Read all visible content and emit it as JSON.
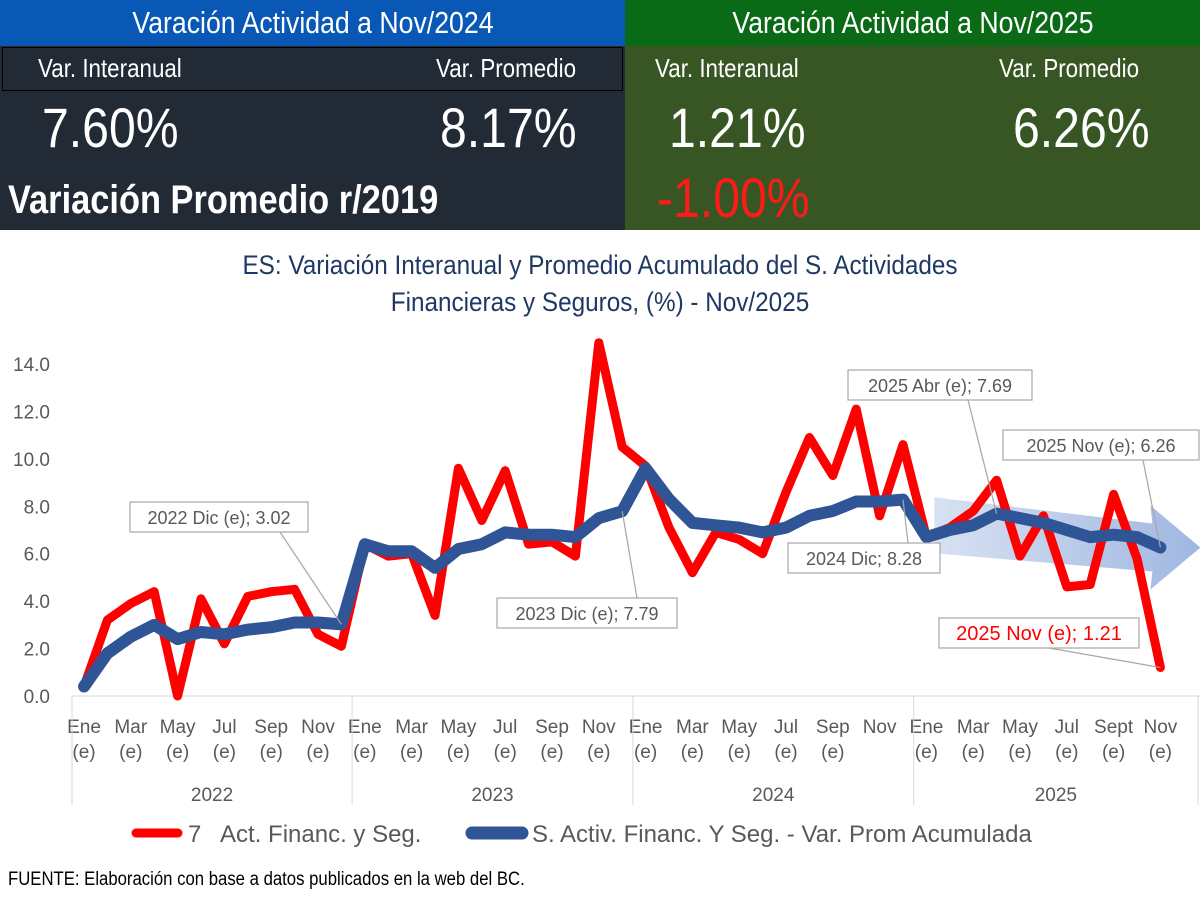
{
  "panel_2024": {
    "header": "Varación Actividad a Nov/2024",
    "interanual_label": "Var. Interanual",
    "promedio_label": "Var. Promedio",
    "interanual_value": "7.60%",
    "promedio_value": "8.17%",
    "r2019_label": "Variación Promedio r/2019",
    "header_color": "#0a58b5",
    "body_color": "#222a36"
  },
  "panel_2025": {
    "header": "Varación Actividad a Nov/2025",
    "interanual_label": "Var. Interanual",
    "promedio_label": "Var. Promedio",
    "interanual_value": "1.21%",
    "promedio_value": "6.26%",
    "r2019_value": "-1.00%",
    "header_color": "#0b6a16",
    "body_color": "#375623"
  },
  "source": "FUENTE:   Elaboración con base a datos publicados en la web del BC.",
  "chart_data": {
    "type": "line",
    "title": "ES: Variación Interanual y Promedio Acumulado del S. Actividades Financieras y Seguros, (%) - Nov/2025",
    "title_lines": [
      "ES: Variación Interanual y Promedio Acumulado del S. Actividades",
      "Financieras y Seguros, (%) - Nov/2025"
    ],
    "ylim": [
      0,
      14
    ],
    "y_ticks": [
      "0.0",
      "2.0",
      "4.0",
      "6.0",
      "8.0",
      "10.0",
      "12.0",
      "14.0"
    ],
    "grid": false,
    "legend_placement": "bottom",
    "years": [
      "2022",
      "2023",
      "2024",
      "2025"
    ],
    "x_tick_labels": [
      [
        "Ene",
        "(e)"
      ],
      [
        "Mar",
        "(e)"
      ],
      [
        "May",
        "(e)"
      ],
      [
        "Jul",
        "(e)"
      ],
      [
        "Sep",
        "(e)"
      ],
      [
        "Nov",
        "(e)"
      ],
      [
        "Ene",
        "(e)"
      ],
      [
        "Mar",
        "(e)"
      ],
      [
        "May",
        "(e)"
      ],
      [
        "Jul",
        "(e)"
      ],
      [
        "Sep",
        "(e)"
      ],
      [
        "Nov",
        "(e)"
      ],
      [
        "Ene",
        "(e)"
      ],
      [
        "Mar",
        "(e)"
      ],
      [
        "May",
        "(e)"
      ],
      [
        "Jul",
        "(e)"
      ],
      [
        "Sep",
        "(e)"
      ],
      [
        "Nov",
        ""
      ],
      [
        "Ene",
        "(e)"
      ],
      [
        "Mar",
        "(e)"
      ],
      [
        "May",
        "(e)"
      ],
      [
        "Jul",
        "(e)"
      ],
      [
        "Sept",
        "(e)"
      ],
      [
        "Nov",
        "(e)"
      ]
    ],
    "series": [
      {
        "name": "7   Act. Financ. y Seg.",
        "color": "#ff0000",
        "values": [
          0.4,
          3.2,
          3.9,
          4.4,
          0.0,
          4.1,
          2.2,
          4.2,
          4.4,
          4.5,
          2.6,
          2.1,
          6.4,
          5.9,
          6.0,
          3.4,
          9.6,
          7.4,
          9.5,
          6.4,
          6.5,
          5.9,
          14.9,
          10.5,
          9.7,
          7.1,
          5.2,
          6.9,
          6.6,
          6.0,
          8.6,
          10.9,
          9.3,
          12.1,
          7.6,
          10.6,
          6.7,
          7.1,
          7.8,
          9.1,
          5.9,
          7.6,
          4.6,
          4.7,
          8.5,
          5.8,
          1.2
        ]
      },
      {
        "name": "S. Activ. Financ. Y Seg. - Var. Prom Acumulada",
        "color": "#2f5597",
        "values": [
          0.4,
          1.8,
          2.5,
          3.0,
          2.4,
          2.7,
          2.6,
          2.8,
          2.9,
          3.1,
          3.1,
          3.02,
          6.4,
          6.1,
          6.1,
          5.4,
          6.2,
          6.4,
          6.9,
          6.8,
          6.8,
          6.7,
          7.5,
          7.79,
          9.6,
          8.3,
          7.3,
          7.2,
          7.1,
          6.9,
          7.1,
          7.6,
          7.8,
          8.2,
          8.2,
          8.28,
          6.7,
          7.0,
          7.2,
          7.69,
          7.5,
          7.3,
          7.0,
          6.7,
          6.8,
          6.7,
          6.26
        ]
      }
    ],
    "annotations": [
      {
        "text": "2022 Dic (e);  3.02",
        "series": 1,
        "index": 11
      },
      {
        "text": "2023 Dic (e);  7.79",
        "series": 1,
        "index": 23
      },
      {
        "text": "2024 Dic;  8.28",
        "series": 1,
        "index": 35
      },
      {
        "text": "2025 Abr (e);  7.69",
        "series": 1,
        "index": 39
      },
      {
        "text": "2025 Nov (e);  6.26",
        "series": 1,
        "index": 46
      },
      {
        "text": "2025 Nov (e); 1.21",
        "series": 0,
        "index": 46
      }
    ],
    "trend_arrow_color": "#8eaadb"
  }
}
